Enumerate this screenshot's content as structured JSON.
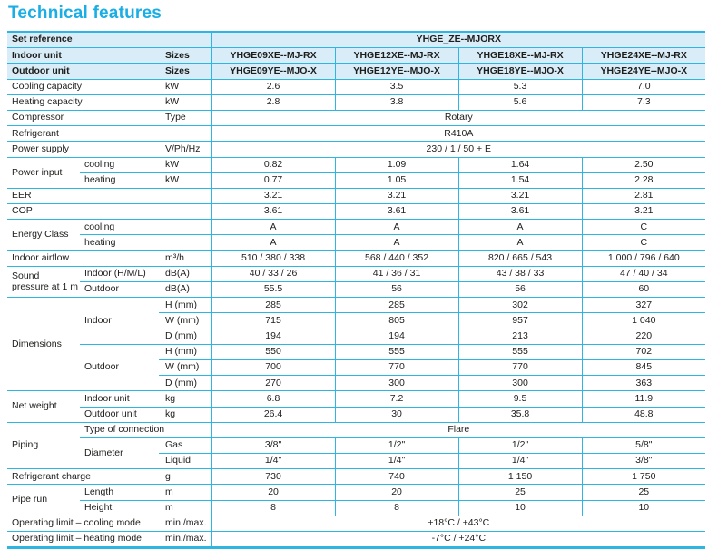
{
  "page_title": "Technical features",
  "colors": {
    "accent_title": "#1aaee5",
    "table_border": "#2fb5e2",
    "header_background": "#d9edf8",
    "text": "#1d1d1b"
  },
  "table": {
    "rows": [
      {
        "header": true,
        "cells": [
          {
            "t": "Set reference",
            "cs": 3,
            "k": "label"
          },
          {
            "t": "YHGE_ZE--MJORX",
            "cs": 4,
            "k": "ref"
          }
        ]
      },
      {
        "header": true,
        "cells": [
          {
            "t": "Indoor unit",
            "cs": 2,
            "k": "label"
          },
          {
            "t": "Sizes",
            "k": "unit"
          },
          {
            "t": "YHGE09XE--MJ-RX",
            "k": "model"
          },
          {
            "t": "YHGE12XE--MJ-RX",
            "k": "model"
          },
          {
            "t": "YHGE18XE--MJ-RX",
            "k": "model"
          },
          {
            "t": "YHGE24XE--MJ-RX",
            "k": "model"
          }
        ]
      },
      {
        "header": true,
        "cells": [
          {
            "t": "Outdoor unit",
            "cs": 2,
            "k": "label"
          },
          {
            "t": "Sizes",
            "k": "unit"
          },
          {
            "t": "YHGE09YE--MJO-X",
            "k": "model"
          },
          {
            "t": "YHGE12YE--MJO-X",
            "k": "model"
          },
          {
            "t": "YHGE18YE--MJO-X",
            "k": "model"
          },
          {
            "t": "YHGE24YE--MJO-X",
            "k": "model"
          }
        ]
      },
      {
        "cells": [
          {
            "t": "Cooling capacity",
            "cs": 2,
            "k": "label"
          },
          {
            "t": "kW",
            "k": "unit"
          },
          {
            "t": "2.6",
            "k": "val"
          },
          {
            "t": "3.5",
            "k": "val"
          },
          {
            "t": "5.3",
            "k": "val"
          },
          {
            "t": "7.0",
            "k": "val"
          }
        ]
      },
      {
        "cells": [
          {
            "t": "Heating capacity",
            "cs": 2,
            "k": "label"
          },
          {
            "t": "kW",
            "k": "unit"
          },
          {
            "t": "2.8",
            "k": "val"
          },
          {
            "t": "3.8",
            "k": "val"
          },
          {
            "t": "5.6",
            "k": "val"
          },
          {
            "t": "7.3",
            "k": "val"
          }
        ]
      },
      {
        "cells": [
          {
            "t": "Compressor",
            "cs": 2,
            "k": "label"
          },
          {
            "t": "Type",
            "k": "unit"
          },
          {
            "t": "Rotary",
            "cs": 4,
            "k": "span"
          }
        ]
      },
      {
        "cells": [
          {
            "t": "Refrigerant",
            "cs": 2,
            "k": "label"
          },
          {
            "t": "",
            "k": "empty"
          },
          {
            "t": "R410A",
            "cs": 4,
            "k": "span"
          }
        ]
      },
      {
        "cells": [
          {
            "t": "Power supply",
            "cs": 2,
            "k": "label"
          },
          {
            "t": "V/Ph/Hz",
            "k": "unit"
          },
          {
            "t": "230 / 1 / 50 + E",
            "cs": 4,
            "k": "span"
          }
        ]
      },
      {
        "cells": [
          {
            "t": "Power input",
            "rs": 2,
            "k": "label"
          },
          {
            "t": "cooling",
            "k": "sub"
          },
          {
            "t": "kW",
            "k": "unit"
          },
          {
            "t": "0.82",
            "k": "val"
          },
          {
            "t": "1.09",
            "k": "val"
          },
          {
            "t": "1.64",
            "k": "val"
          },
          {
            "t": "2.50",
            "k": "val"
          }
        ]
      },
      {
        "cells": [
          {
            "t": "heating",
            "k": "sub"
          },
          {
            "t": "kW",
            "k": "unit"
          },
          {
            "t": "0.77",
            "k": "val"
          },
          {
            "t": "1.05",
            "k": "val"
          },
          {
            "t": "1.54",
            "k": "val"
          },
          {
            "t": "2.28",
            "k": "val"
          }
        ]
      },
      {
        "cells": [
          {
            "t": "EER",
            "cs": 2,
            "k": "label"
          },
          {
            "t": "",
            "k": "empty"
          },
          {
            "t": "3.21",
            "k": "val"
          },
          {
            "t": "3.21",
            "k": "val"
          },
          {
            "t": "3.21",
            "k": "val"
          },
          {
            "t": "2.81",
            "k": "val"
          }
        ]
      },
      {
        "cells": [
          {
            "t": "COP",
            "cs": 2,
            "k": "label"
          },
          {
            "t": "",
            "k": "empty"
          },
          {
            "t": "3.61",
            "k": "val"
          },
          {
            "t": "3.61",
            "k": "val"
          },
          {
            "t": "3.61",
            "k": "val"
          },
          {
            "t": "3.21",
            "k": "val"
          }
        ]
      },
      {
        "cells": [
          {
            "t": "Energy Class",
            "rs": 2,
            "k": "label"
          },
          {
            "t": "cooling",
            "k": "sub"
          },
          {
            "t": "",
            "k": "empty"
          },
          {
            "t": "A",
            "k": "val"
          },
          {
            "t": "A",
            "k": "val"
          },
          {
            "t": "A",
            "k": "val"
          },
          {
            "t": "C",
            "k": "val"
          }
        ]
      },
      {
        "cells": [
          {
            "t": "heating",
            "k": "sub"
          },
          {
            "t": "",
            "k": "empty"
          },
          {
            "t": "A",
            "k": "val"
          },
          {
            "t": "A",
            "k": "val"
          },
          {
            "t": "A",
            "k": "val"
          },
          {
            "t": "C",
            "k": "val"
          }
        ]
      },
      {
        "cells": [
          {
            "t": "Indoor airflow",
            "cs": 2,
            "k": "label"
          },
          {
            "t": "m³/h",
            "k": "unit"
          },
          {
            "t": "510 / 380 / 338",
            "k": "val"
          },
          {
            "t": "568 / 440 / 352",
            "k": "val"
          },
          {
            "t": "820 / 665 / 543",
            "k": "val"
          },
          {
            "t": "1 000 / 796 / 640",
            "k": "val"
          }
        ]
      },
      {
        "cells": [
          {
            "t": "Sound pressure at 1 m",
            "rs": 2,
            "k": "label"
          },
          {
            "t": "Indoor (H/M/L)",
            "k": "sub"
          },
          {
            "t": "dB(A)",
            "k": "unit"
          },
          {
            "t": "40 / 33 / 26",
            "k": "val"
          },
          {
            "t": "41 / 36 / 31",
            "k": "val"
          },
          {
            "t": "43 / 38 / 33",
            "k": "val"
          },
          {
            "t": "47 / 40 / 34",
            "k": "val"
          }
        ]
      },
      {
        "cells": [
          {
            "t": "Outdoor",
            "k": "sub"
          },
          {
            "t": "dB(A)",
            "k": "unit"
          },
          {
            "t": "55.5",
            "k": "val"
          },
          {
            "t": "56",
            "k": "val"
          },
          {
            "t": "56",
            "k": "val"
          },
          {
            "t": "60",
            "k": "val"
          }
        ]
      },
      {
        "cells": [
          {
            "t": "Dimensions",
            "rs": 6,
            "k": "label"
          },
          {
            "t": "Indoor",
            "rs": 3,
            "k": "sub"
          },
          {
            "t": "H (mm)",
            "k": "unit"
          },
          {
            "t": "285",
            "k": "val"
          },
          {
            "t": "285",
            "k": "val"
          },
          {
            "t": "302",
            "k": "val"
          },
          {
            "t": "327",
            "k": "val"
          }
        ]
      },
      {
        "cells": [
          {
            "t": "W (mm)",
            "k": "unit"
          },
          {
            "t": "715",
            "k": "val"
          },
          {
            "t": "805",
            "k": "val"
          },
          {
            "t": "957",
            "k": "val"
          },
          {
            "t": "1 040",
            "k": "val"
          }
        ]
      },
      {
        "cells": [
          {
            "t": "D (mm)",
            "k": "unit"
          },
          {
            "t": "194",
            "k": "val"
          },
          {
            "t": "194",
            "k": "val"
          },
          {
            "t": "213",
            "k": "val"
          },
          {
            "t": "220",
            "k": "val"
          }
        ]
      },
      {
        "cells": [
          {
            "t": "Outdoor",
            "rs": 3,
            "k": "sub"
          },
          {
            "t": "H (mm)",
            "k": "unit"
          },
          {
            "t": "550",
            "k": "val"
          },
          {
            "t": "555",
            "k": "val"
          },
          {
            "t": "555",
            "k": "val"
          },
          {
            "t": "702",
            "k": "val"
          }
        ]
      },
      {
        "cells": [
          {
            "t": "W (mm)",
            "k": "unit"
          },
          {
            "t": "700",
            "k": "val"
          },
          {
            "t": "770",
            "k": "val"
          },
          {
            "t": "770",
            "k": "val"
          },
          {
            "t": "845",
            "k": "val"
          }
        ]
      },
      {
        "cells": [
          {
            "t": "D (mm)",
            "k": "unit"
          },
          {
            "t": "270",
            "k": "val"
          },
          {
            "t": "300",
            "k": "val"
          },
          {
            "t": "300",
            "k": "val"
          },
          {
            "t": "363",
            "k": "val"
          }
        ]
      },
      {
        "cells": [
          {
            "t": "Net weight",
            "rs": 2,
            "k": "label"
          },
          {
            "t": "Indoor unit",
            "k": "sub"
          },
          {
            "t": "kg",
            "k": "unit"
          },
          {
            "t": "6.8",
            "k": "val"
          },
          {
            "t": "7.2",
            "k": "val"
          },
          {
            "t": "9.5",
            "k": "val"
          },
          {
            "t": "11.9",
            "k": "val"
          }
        ]
      },
      {
        "cells": [
          {
            "t": "Outdoor unit",
            "k": "sub"
          },
          {
            "t": "kg",
            "k": "unit"
          },
          {
            "t": "26.4",
            "k": "val"
          },
          {
            "t": "30",
            "k": "val"
          },
          {
            "t": "35.8",
            "k": "val"
          },
          {
            "t": "48.8",
            "k": "val"
          }
        ]
      },
      {
        "cells": [
          {
            "t": "Piping",
            "rs": 3,
            "k": "label"
          },
          {
            "t": "Type of connection",
            "cs": 2,
            "k": "sub"
          },
          {
            "t": "Flare",
            "cs": 4,
            "k": "span"
          }
        ]
      },
      {
        "cells": [
          {
            "t": "Diameter",
            "rs": 2,
            "k": "sub"
          },
          {
            "t": "Gas",
            "k": "unit"
          },
          {
            "t": "3/8\"",
            "k": "val"
          },
          {
            "t": "1/2\"",
            "k": "val"
          },
          {
            "t": "1/2\"",
            "k": "val"
          },
          {
            "t": "5/8\"",
            "k": "val"
          }
        ]
      },
      {
        "cells": [
          {
            "t": "Liquid",
            "k": "unit"
          },
          {
            "t": "1/4\"",
            "k": "val"
          },
          {
            "t": "1/4\"",
            "k": "val"
          },
          {
            "t": "1/4\"",
            "k": "val"
          },
          {
            "t": "3/8\"",
            "k": "val"
          }
        ]
      },
      {
        "cells": [
          {
            "t": "Refrigerant charge",
            "cs": 2,
            "k": "label"
          },
          {
            "t": "g",
            "k": "unit"
          },
          {
            "t": "730",
            "k": "val"
          },
          {
            "t": "740",
            "k": "val"
          },
          {
            "t": "1 150",
            "k": "val"
          },
          {
            "t": "1 750",
            "k": "val"
          }
        ]
      },
      {
        "cells": [
          {
            "t": "Pipe run",
            "rs": 2,
            "k": "label"
          },
          {
            "t": "Length",
            "k": "sub"
          },
          {
            "t": "m",
            "k": "unit"
          },
          {
            "t": "20",
            "k": "val"
          },
          {
            "t": "20",
            "k": "val"
          },
          {
            "t": "25",
            "k": "val"
          },
          {
            "t": "25",
            "k": "val"
          }
        ]
      },
      {
        "cells": [
          {
            "t": "Height",
            "k": "sub"
          },
          {
            "t": "m",
            "k": "unit"
          },
          {
            "t": "8",
            "k": "val"
          },
          {
            "t": "8",
            "k": "val"
          },
          {
            "t": "10",
            "k": "val"
          },
          {
            "t": "10",
            "k": "val"
          }
        ]
      },
      {
        "cells": [
          {
            "t": "Operating limit – cooling mode",
            "cs": 2,
            "k": "label"
          },
          {
            "t": "min./max.",
            "k": "unit"
          },
          {
            "t": "+18°C / +43°C",
            "cs": 4,
            "k": "span"
          }
        ]
      },
      {
        "cells": [
          {
            "t": "Operating limit – heating mode",
            "cs": 2,
            "k": "label"
          },
          {
            "t": "min./max.",
            "k": "unit"
          },
          {
            "t": "-7°C / +24°C",
            "cs": 4,
            "k": "span"
          }
        ]
      }
    ]
  }
}
